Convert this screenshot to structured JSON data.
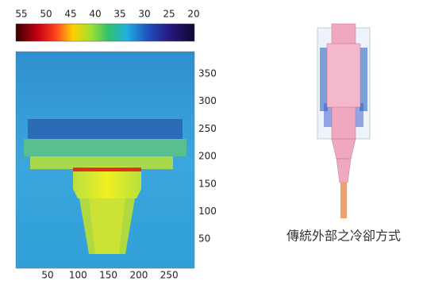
{
  "colorbar": {
    "labels": [
      55,
      50,
      45,
      40,
      35,
      30,
      25,
      20
    ]
  },
  "image": {
    "y_labels": [
      350,
      300,
      250,
      200,
      150,
      100,
      50
    ],
    "x_labels": [
      50,
      100,
      150,
      200,
      250
    ]
  },
  "caption": "傳統外部之冷卻方式"
}
